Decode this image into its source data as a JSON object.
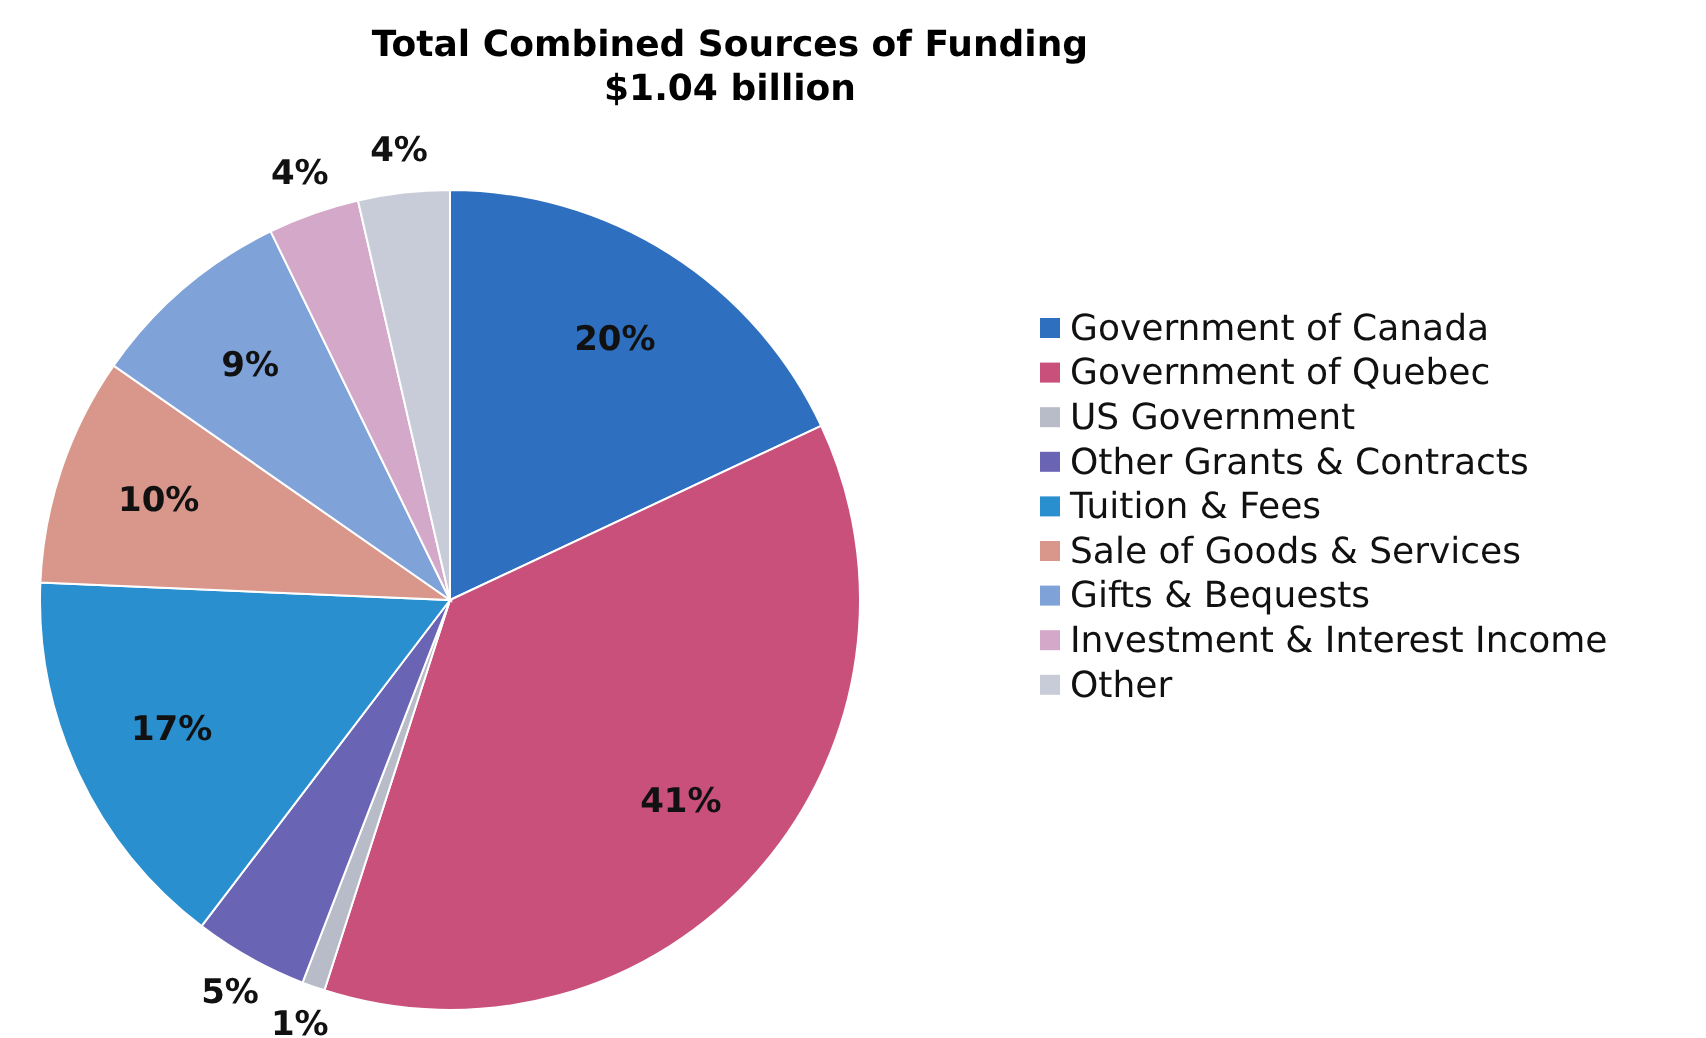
{
  "chart_data": {
    "type": "pie",
    "title": "Total Combined Sources of Funding\n$1.04 billion",
    "categories": [
      "Government of Canada",
      "Government of Quebec",
      "US Government",
      "Other Grants & Contracts",
      "Tuition & Fees",
      "Sale of Goods & Services",
      "Gifts & Bequests",
      "Investment & Interest Income",
      "Other"
    ],
    "values": [
      20,
      41,
      1,
      5,
      17,
      10,
      9,
      4,
      4
    ],
    "colors": [
      "#2e6fbf",
      "#c9507a",
      "#b8bcc8",
      "#6a64b4",
      "#2a8fcf",
      "#d9968a",
      "#7fa3d8",
      "#d4a8c8",
      "#c8ccd8"
    ],
    "value_labels": [
      "20%",
      "41%",
      "1%",
      "5%",
      "17%",
      "10%",
      "9%",
      "4%",
      "4%"
    ],
    "legend": "right"
  }
}
